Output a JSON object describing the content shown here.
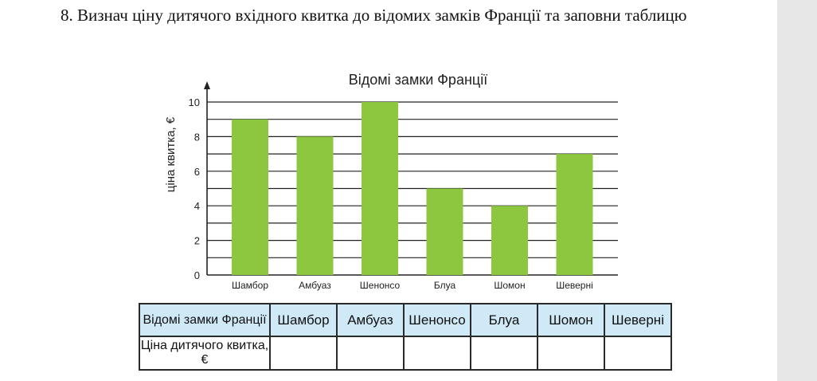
{
  "task": {
    "text": "8. Визнач ціну дитячого вхідного квитка до відомих замків Франції та заповни таблицю"
  },
  "chart_data": {
    "type": "bar",
    "title": "Відомі замки Франції",
    "ylabel": "ціна квитка, €",
    "xlabel": "",
    "categories": [
      "Шамбор",
      "Амбуаз",
      "Шенонсо",
      "Блуа",
      "Шомон",
      "Шеверні"
    ],
    "values": [
      9,
      8,
      10,
      5,
      4,
      7
    ],
    "ylim": [
      0,
      10
    ],
    "yticks": [
      0,
      2,
      4,
      6,
      8,
      10
    ],
    "grid": true,
    "bar_color": "#8dc63f"
  },
  "table": {
    "row1_header": "Відомі замки Франції",
    "row2_header": "Ціна дитячого квитка, €",
    "columns": [
      "Шамбор",
      "Амбуаз",
      "Шенонсо",
      "Блуа",
      "Шомон",
      "Шеверні"
    ],
    "header_bg": "#cfe9f7"
  }
}
